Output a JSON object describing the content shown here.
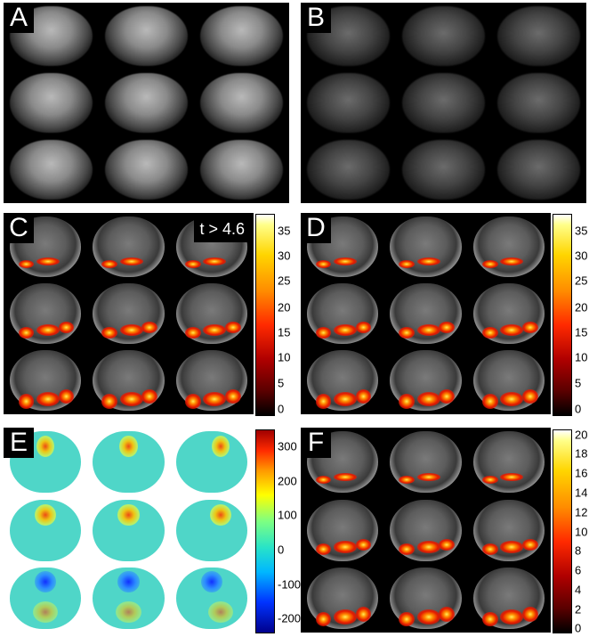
{
  "panels": {
    "A": {
      "label": "A"
    },
    "B": {
      "label": "B"
    },
    "C": {
      "label": "C",
      "threshold": "t > 4.6",
      "colorbar_ticks": [
        "35",
        "30",
        "25",
        "20",
        "15",
        "10",
        "5",
        "0"
      ]
    },
    "D": {
      "label": "D",
      "colorbar_ticks": [
        "35",
        "30",
        "25",
        "20",
        "15",
        "10",
        "5",
        "0"
      ]
    },
    "E": {
      "label": "E",
      "colorbar_ticks": [
        "300",
        "200",
        "100",
        "0",
        "-100",
        "-200"
      ]
    },
    "F": {
      "label": "F",
      "colorbar_ticks": [
        "20",
        "18",
        "16",
        "14",
        "12",
        "10",
        "8",
        "6",
        "4",
        "2",
        "0"
      ]
    }
  },
  "colormaps": {
    "hot": "#ff8c00",
    "jet": "#28e3c8"
  }
}
